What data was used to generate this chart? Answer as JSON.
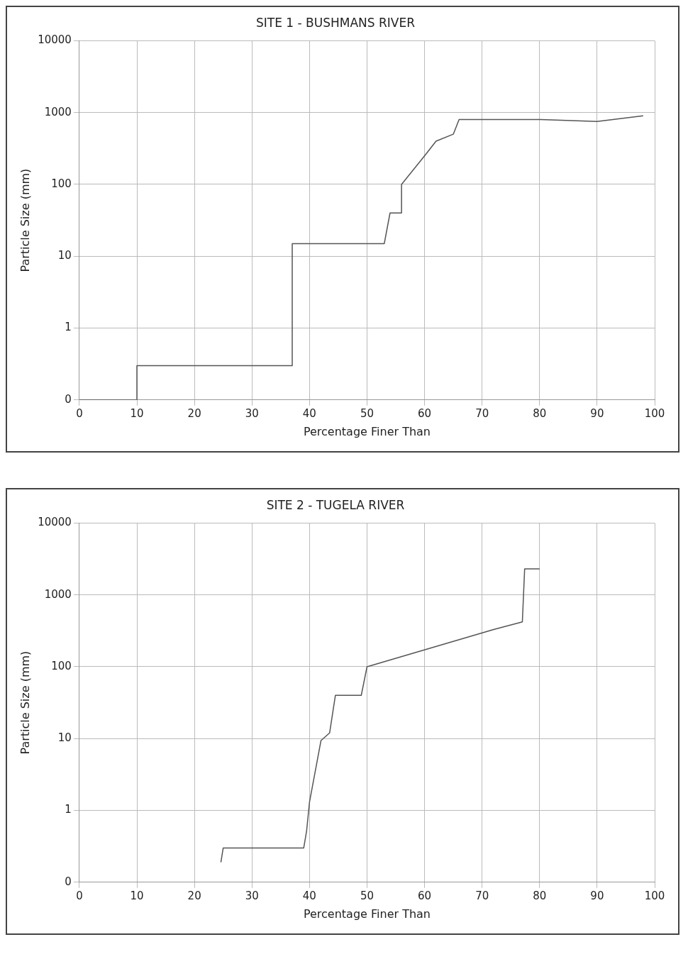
{
  "chart_data": [
    {
      "type": "line",
      "title": "SITE 1 - BUSHMANS RIVER",
      "xlabel": "Percentage Finer Than",
      "ylabel": "Particle Size (mm)",
      "x": [
        0,
        10,
        10,
        37,
        37,
        41,
        53,
        54,
        56,
        56,
        60,
        62,
        65,
        66,
        80,
        90,
        98
      ],
      "values": [
        0.1,
        0.1,
        0.3,
        0.3,
        15,
        15,
        15,
        40,
        40,
        100,
        250,
        400,
        500,
        800,
        800,
        750,
        900
      ],
      "color": "#555555",
      "xlim": [
        0,
        100
      ],
      "xticks": [
        0,
        10,
        20,
        30,
        40,
        50,
        60,
        70,
        80,
        90,
        100
      ],
      "ylim": [
        0.1,
        10000
      ],
      "yticks": [
        {
          "value": 0.1,
          "label": "0"
        },
        1,
        10,
        100,
        1000,
        10000
      ],
      "log": "y",
      "grid": true,
      "marker": "none",
      "line_style": "solid"
    },
    {
      "type": "line",
      "title": "SITE 2 - TUGELA RIVER",
      "xlabel": "Percentage Finer Than",
      "ylabel": "Particle Size (mm)",
      "x": [
        24.6,
        25,
        39,
        39.5,
        40,
        42,
        43.5,
        44.5,
        49,
        50,
        72,
        77,
        77.4,
        80
      ],
      "values": [
        0.19,
        0.3,
        0.3,
        0.52,
        1.3,
        9.4,
        12,
        40,
        40,
        100,
        330,
        420,
        2300,
        2300
      ],
      "color": "#555555",
      "xlim": [
        0,
        100
      ],
      "xticks": [
        0,
        10,
        20,
        30,
        40,
        50,
        60,
        70,
        80,
        90,
        100
      ],
      "ylim": [
        0.1,
        10000
      ],
      "yticks": [
        {
          "value": 0.1,
          "label": "0"
        },
        1,
        10,
        100,
        1000,
        10000
      ],
      "log": "y",
      "grid": true,
      "marker": "none",
      "line_style": "solid"
    }
  ]
}
